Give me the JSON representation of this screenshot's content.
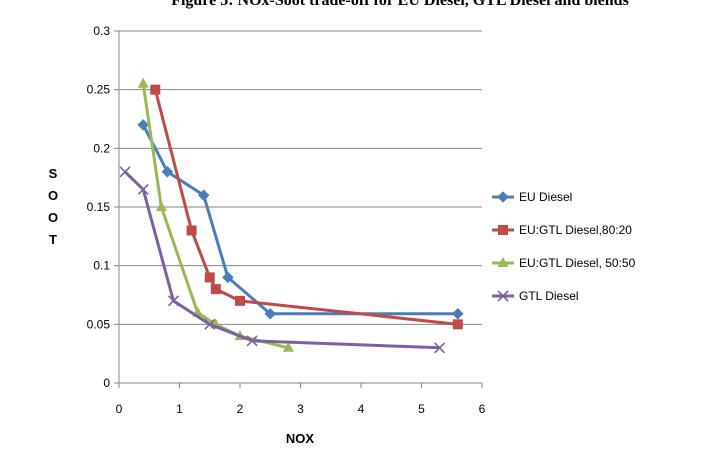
{
  "caption": "Figure 5: NOx-Soot trade-off for EU Diesel, GTL Diesel and blends",
  "chart_data": {
    "type": "scatter",
    "xlabel": "NOX",
    "ylabel": "SOOT",
    "xlim": [
      0,
      6
    ],
    "ylim": [
      0,
      0.3
    ],
    "x_ticks": [
      "0",
      "1",
      "2",
      "3",
      "4",
      "5",
      "6"
    ],
    "y_ticks": [
      "0",
      "0.05",
      "0.1",
      "0.15",
      "0.2",
      "0.25",
      "0.3"
    ],
    "grid": "horizontal",
    "legend_position": "right",
    "series": [
      {
        "name": "EU Diesel",
        "color": "#4a7ebb",
        "marker": "diamond",
        "points": [
          [
            0.4,
            0.22
          ],
          [
            0.8,
            0.18
          ],
          [
            1.4,
            0.16
          ],
          [
            1.8,
            0.09
          ],
          [
            2.5,
            0.059
          ],
          [
            5.6,
            0.059
          ]
        ]
      },
      {
        "name": "EU:GTL Diesel,80:20",
        "color": "#be4b48",
        "marker": "square",
        "points": [
          [
            0.6,
            0.25
          ],
          [
            1.2,
            0.13
          ],
          [
            1.5,
            0.09
          ],
          [
            1.6,
            0.08
          ],
          [
            2.0,
            0.07
          ],
          [
            5.6,
            0.05
          ]
        ]
      },
      {
        "name": "EU:GTL Diesel, 50:50",
        "color": "#98b954",
        "marker": "triangle",
        "points": [
          [
            0.4,
            0.255
          ],
          [
            0.7,
            0.15
          ],
          [
            1.3,
            0.06
          ],
          [
            1.6,
            0.05
          ],
          [
            2.0,
            0.04
          ],
          [
            2.8,
            0.03
          ]
        ]
      },
      {
        "name": "GTL Diesel",
        "color": "#7d60a0",
        "marker": "x",
        "points": [
          [
            0.1,
            0.18
          ],
          [
            0.4,
            0.165
          ],
          [
            0.9,
            0.07
          ],
          [
            1.5,
            0.05
          ],
          [
            2.2,
            0.036
          ],
          [
            5.3,
            0.03
          ]
        ]
      }
    ]
  }
}
